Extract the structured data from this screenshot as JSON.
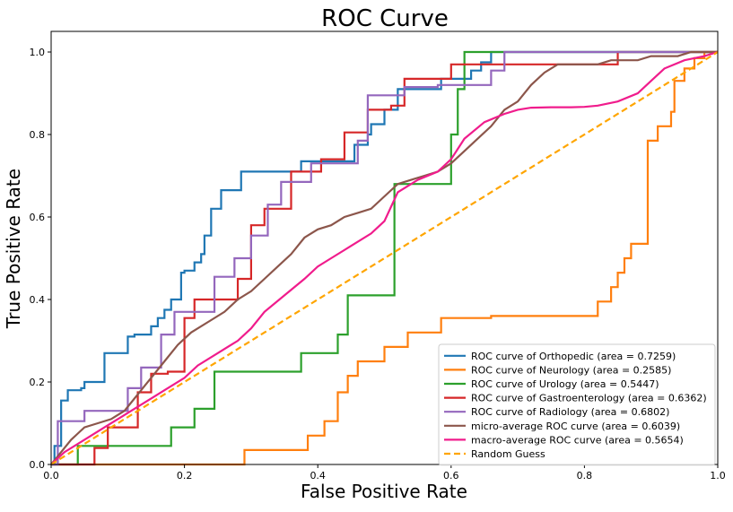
{
  "chart_data": {
    "type": "line",
    "title": "ROC Curve",
    "xlabel": "False Positive Rate",
    "ylabel": "True Positive Rate",
    "xlim": [
      0.0,
      1.0
    ],
    "ylim": [
      0.0,
      1.05
    ],
    "xticks": [
      "0.0",
      "0.2",
      "0.4",
      "0.6",
      "0.8",
      "1.0"
    ],
    "yticks": [
      "0.0",
      "0.2",
      "0.4",
      "0.6",
      "0.8",
      "1.0"
    ],
    "grid": false,
    "legend_position": "lower-right",
    "series": [
      {
        "name": "ROC curve of Orthopedic (area = 0.7259)",
        "color": "#1f77b4",
        "style": "solid",
        "step": true,
        "x": [
          0.0,
          0.005,
          0.005,
          0.015,
          0.015,
          0.025,
          0.025,
          0.045,
          0.045,
          0.05,
          0.05,
          0.08,
          0.08,
          0.115,
          0.115,
          0.125,
          0.125,
          0.15,
          0.15,
          0.16,
          0.16,
          0.17,
          0.17,
          0.18,
          0.18,
          0.195,
          0.195,
          0.2,
          0.2,
          0.215,
          0.215,
          0.225,
          0.225,
          0.23,
          0.23,
          0.24,
          0.24,
          0.255,
          0.255,
          0.285,
          0.285,
          0.375,
          0.375,
          0.455,
          0.455,
          0.475,
          0.475,
          0.48,
          0.48,
          0.5,
          0.5,
          0.52,
          0.52,
          0.585,
          0.585,
          0.63,
          0.63,
          0.645,
          0.645,
          0.66,
          0.66,
          0.67,
          0.67,
          1.0
        ],
        "y": [
          0.0,
          0.0,
          0.045,
          0.045,
          0.155,
          0.155,
          0.18,
          0.18,
          0.185,
          0.185,
          0.2,
          0.2,
          0.27,
          0.27,
          0.31,
          0.31,
          0.315,
          0.315,
          0.335,
          0.335,
          0.355,
          0.355,
          0.375,
          0.375,
          0.4,
          0.4,
          0.465,
          0.465,
          0.47,
          0.47,
          0.49,
          0.49,
          0.51,
          0.51,
          0.555,
          0.555,
          0.62,
          0.62,
          0.665,
          0.665,
          0.71,
          0.71,
          0.735,
          0.735,
          0.775,
          0.775,
          0.8,
          0.8,
          0.825,
          0.825,
          0.86,
          0.86,
          0.91,
          0.91,
          0.935,
          0.935,
          0.955,
          0.955,
          0.975,
          0.975,
          1.0,
          1.0,
          1.0,
          1.0
        ]
      },
      {
        "name": "ROC curve of Neurology (area = 0.2585)",
        "color": "#ff7f0e",
        "style": "solid",
        "step": true,
        "x": [
          0.0,
          0.29,
          0.29,
          0.385,
          0.385,
          0.41,
          0.41,
          0.43,
          0.43,
          0.445,
          0.445,
          0.46,
          0.46,
          0.5,
          0.5,
          0.535,
          0.535,
          0.585,
          0.585,
          0.66,
          0.66,
          0.82,
          0.82,
          0.84,
          0.84,
          0.85,
          0.85,
          0.86,
          0.86,
          0.87,
          0.87,
          0.895,
          0.895,
          0.91,
          0.91,
          0.93,
          0.93,
          0.935,
          0.935,
          0.95,
          0.95,
          0.965,
          0.965,
          0.98,
          0.98,
          1.0
        ],
        "y": [
          0.0,
          0.0,
          0.035,
          0.035,
          0.07,
          0.07,
          0.105,
          0.105,
          0.175,
          0.175,
          0.215,
          0.215,
          0.25,
          0.25,
          0.285,
          0.285,
          0.32,
          0.32,
          0.355,
          0.355,
          0.36,
          0.36,
          0.395,
          0.395,
          0.43,
          0.43,
          0.465,
          0.465,
          0.5,
          0.5,
          0.535,
          0.535,
          0.785,
          0.785,
          0.82,
          0.82,
          0.855,
          0.855,
          0.93,
          0.93,
          0.96,
          0.96,
          0.985,
          0.985,
          1.0,
          1.0
        ]
      },
      {
        "name": "ROC curve of Urology (area = 0.5447)",
        "color": "#2ca02c",
        "style": "solid",
        "step": true,
        "x": [
          0.0,
          0.04,
          0.04,
          0.18,
          0.18,
          0.215,
          0.215,
          0.245,
          0.245,
          0.375,
          0.375,
          0.43,
          0.43,
          0.445,
          0.445,
          0.515,
          0.515,
          0.6,
          0.6,
          0.61,
          0.61,
          0.62,
          0.62,
          1.0
        ],
        "y": [
          0.0,
          0.0,
          0.045,
          0.045,
          0.09,
          0.09,
          0.135,
          0.135,
          0.225,
          0.225,
          0.27,
          0.27,
          0.315,
          0.315,
          0.41,
          0.41,
          0.68,
          0.68,
          0.8,
          0.8,
          0.91,
          0.91,
          1.0,
          1.0
        ]
      },
      {
        "name": "ROC curve of Gastroenterology (area = 0.6362)",
        "color": "#d62728",
        "style": "solid",
        "step": true,
        "x": [
          0.0,
          0.065,
          0.065,
          0.085,
          0.085,
          0.13,
          0.13,
          0.15,
          0.15,
          0.16,
          0.16,
          0.175,
          0.175,
          0.2,
          0.2,
          0.215,
          0.215,
          0.28,
          0.28,
          0.3,
          0.3,
          0.32,
          0.32,
          0.36,
          0.36,
          0.405,
          0.405,
          0.44,
          0.44,
          0.475,
          0.475,
          0.51,
          0.51,
          0.53,
          0.53,
          0.6,
          0.6,
          0.65,
          0.65,
          0.735,
          0.735,
          0.76,
          0.76,
          0.79,
          0.79,
          0.85,
          0.85,
          0.905,
          0.905,
          1.0
        ],
        "y": [
          0.0,
          0.0,
          0.04,
          0.04,
          0.09,
          0.09,
          0.175,
          0.175,
          0.22,
          0.22,
          0.22,
          0.22,
          0.225,
          0.225,
          0.355,
          0.355,
          0.4,
          0.4,
          0.45,
          0.45,
          0.58,
          0.58,
          0.62,
          0.62,
          0.71,
          0.71,
          0.74,
          0.74,
          0.805,
          0.805,
          0.86,
          0.86,
          0.87,
          0.87,
          0.935,
          0.935,
          0.97,
          0.97,
          0.97,
          0.97,
          0.97,
          0.97,
          0.97,
          0.97,
          0.97,
          0.97,
          1.0,
          1.0,
          1.0,
          1.0
        ]
      },
      {
        "name": "ROC curve of Radiology (area = 0.6802)",
        "color": "#9467bd",
        "style": "solid",
        "step": true,
        "x": [
          0.0,
          0.01,
          0.01,
          0.05,
          0.05,
          0.115,
          0.115,
          0.135,
          0.135,
          0.165,
          0.165,
          0.185,
          0.185,
          0.245,
          0.245,
          0.275,
          0.275,
          0.3,
          0.3,
          0.325,
          0.325,
          0.345,
          0.345,
          0.39,
          0.39,
          0.46,
          0.46,
          0.475,
          0.475,
          0.53,
          0.53,
          0.58,
          0.58,
          0.66,
          0.66,
          0.68,
          0.68,
          1.0
        ],
        "y": [
          0.0,
          0.0,
          0.105,
          0.105,
          0.13,
          0.13,
          0.185,
          0.185,
          0.235,
          0.235,
          0.315,
          0.315,
          0.37,
          0.37,
          0.455,
          0.455,
          0.5,
          0.5,
          0.555,
          0.555,
          0.63,
          0.63,
          0.685,
          0.685,
          0.73,
          0.73,
          0.785,
          0.785,
          0.895,
          0.895,
          0.915,
          0.915,
          0.92,
          0.92,
          0.955,
          0.955,
          1.0,
          1.0
        ]
      },
      {
        "name": "micro-average ROC curve (area = 0.6039)",
        "color": "#8c564b",
        "style": "solid",
        "step": true,
        "x": [
          0.0,
          0.01,
          0.02,
          0.03,
          0.04,
          0.05,
          0.07,
          0.09,
          0.11,
          0.12,
          0.13,
          0.14,
          0.15,
          0.17,
          0.19,
          0.21,
          0.24,
          0.26,
          0.28,
          0.3,
          0.32,
          0.34,
          0.36,
          0.38,
          0.4,
          0.42,
          0.44,
          0.46,
          0.48,
          0.5,
          0.52,
          0.54,
          0.56,
          0.58,
          0.6,
          0.62,
          0.64,
          0.66,
          0.68,
          0.7,
          0.72,
          0.74,
          0.76,
          0.78,
          0.8,
          0.82,
          0.84,
          0.86,
          0.88,
          0.9,
          0.92,
          0.94,
          0.96,
          0.98,
          1.0
        ],
        "y": [
          0.0,
          0.02,
          0.04,
          0.06,
          0.075,
          0.09,
          0.1,
          0.11,
          0.13,
          0.15,
          0.17,
          0.19,
          0.21,
          0.25,
          0.29,
          0.32,
          0.35,
          0.37,
          0.4,
          0.42,
          0.45,
          0.48,
          0.51,
          0.55,
          0.57,
          0.58,
          0.6,
          0.61,
          0.62,
          0.65,
          0.68,
          0.69,
          0.7,
          0.71,
          0.73,
          0.76,
          0.79,
          0.82,
          0.86,
          0.88,
          0.92,
          0.95,
          0.97,
          0.97,
          0.97,
          0.97,
          0.98,
          0.98,
          0.98,
          0.99,
          0.99,
          0.99,
          1.0,
          1.0,
          1.0
        ]
      },
      {
        "name": "macro-average ROC curve (area = 0.5654)",
        "color": "#f01c8c",
        "style": "solid",
        "step": false,
        "x": [
          0.0,
          0.02,
          0.05,
          0.08,
          0.1,
          0.12,
          0.15,
          0.17,
          0.2,
          0.22,
          0.25,
          0.28,
          0.3,
          0.32,
          0.35,
          0.38,
          0.4,
          0.42,
          0.45,
          0.48,
          0.5,
          0.52,
          0.55,
          0.58,
          0.6,
          0.62,
          0.65,
          0.68,
          0.7,
          0.72,
          0.75,
          0.78,
          0.8,
          0.82,
          0.85,
          0.88,
          0.9,
          0.92,
          0.95,
          0.98,
          1.0
        ],
        "y": [
          0.0,
          0.03,
          0.06,
          0.09,
          0.11,
          0.13,
          0.16,
          0.18,
          0.21,
          0.24,
          0.27,
          0.3,
          0.33,
          0.37,
          0.41,
          0.45,
          0.48,
          0.5,
          0.53,
          0.56,
          0.59,
          0.66,
          0.69,
          0.71,
          0.74,
          0.79,
          0.83,
          0.85,
          0.86,
          0.865,
          0.866,
          0.866,
          0.867,
          0.87,
          0.88,
          0.9,
          0.93,
          0.96,
          0.98,
          0.99,
          1.0
        ]
      },
      {
        "name": "Random Guess",
        "color": "#ffa500",
        "style": "dashed",
        "step": false,
        "x": [
          0.0,
          1.0
        ],
        "y": [
          0.0,
          1.0
        ]
      }
    ]
  }
}
